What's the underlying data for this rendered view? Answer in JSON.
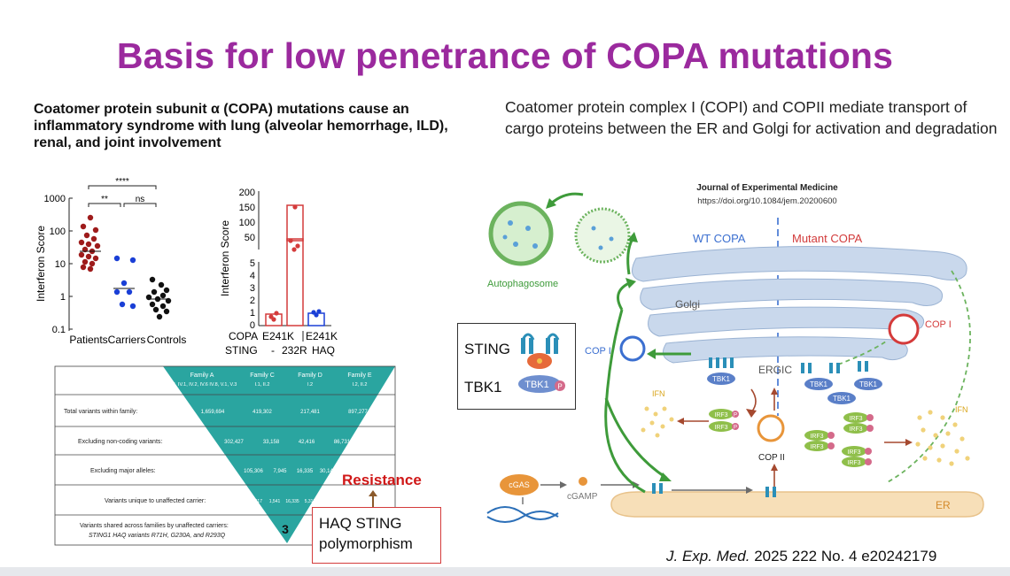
{
  "slide": {
    "title": "Basis for low penetrance of COPA mutations",
    "left_heading": "Coatomer protein subunit α (COPA) mutations cause an inflammatory syndrome with lung (alveolar hemorrhage, ILD), renal, and joint involvement",
    "right_heading": "Coatomer protein complex I (COPI) and COPII mediate transport of cargo proteins between the ER and Golgi for activation and degradation",
    "citation_journal": "J. Exp. Med.",
    "citation_rest": " 2025 222 No. 4 e20242179"
  },
  "scatter_plot": {
    "ylabel": "Interferon Score",
    "yticks": [
      "1000",
      "100",
      "10",
      "1",
      "0.1"
    ],
    "groups": [
      "Patients",
      "Carriers",
      "Controls"
    ],
    "sig1": "****",
    "sig2": "**",
    "sig3": "ns"
  },
  "bar_plot": {
    "ylabel": "Interferon Score",
    "yticks_top": [
      "200",
      "150",
      "100",
      "50",
      "5"
    ],
    "yticks_bottom": [
      "4",
      "3",
      "2",
      "1",
      "0"
    ],
    "copa_label": "COPA",
    "sting_label": "STING",
    "copa_1": "E241K",
    "copa_2": "E241K",
    "sting_1": "-",
    "sting_2": "232R",
    "sting_3": "HAQ"
  },
  "funnel": {
    "families": [
      {
        "name": "Family A",
        "members": "III.2, IV.1, IV.2, IV.6 IV.8, V.1, V.3"
      },
      {
        "name": "Family C",
        "members": "I.1, II.2"
      },
      {
        "name": "Family D",
        "members": "I.2"
      },
      {
        "name": "Family E",
        "members": "I.2, II.2"
      }
    ],
    "rows": [
      {
        "label": "Total variants within family:",
        "values": [
          "1,659,694",
          "419,302",
          "217,481",
          "897,277"
        ]
      },
      {
        "label": "Excluding non-coding variants:",
        "values": [
          "302,427",
          "33,158",
          "42,416",
          "86,731"
        ]
      },
      {
        "label": "Excluding major alleles:",
        "values": [
          "105,306",
          "7,945",
          "16,335",
          "30,145"
        ]
      },
      {
        "label": "Variants unique to unaffected carrier:",
        "values": [
          "117",
          "1,541",
          "16,335",
          "5,317"
        ]
      }
    ],
    "last_row_line1": "Variants shared across families by unaffected carriers:",
    "last_row_line2": "STING1 HAQ variants R71H, G230A, and R293Q",
    "last_value": "3",
    "resistance": "Resistance",
    "haq_box": "HAQ STING polymorphism"
  },
  "diagram": {
    "journal": "Journal of Experimental Medicine",
    "doi": "https://doi.org/10.1084/jem.20200600",
    "wt": "WT COPA",
    "mutant": "Mutant COPA",
    "golgi": "Golgi",
    "ergic": "ERGIC",
    "copi_left": "COP I",
    "copi_right": "COP I",
    "copii": "COP II",
    "autophagosome": "Autophagosome",
    "ifn_left": "IFN",
    "ifn_right": "IFN",
    "er": "ER",
    "cgas": "cGAS",
    "cgamp": "cGAMP",
    "tbk1": "TBK1",
    "irf3": "IRF3",
    "p": "P",
    "sting_legend": "STING",
    "tbk1_legend": "TBK1"
  },
  "colors": {
    "title": "#9b2a9e",
    "funnel": "#2aa5a0",
    "green_arrow": "#3e9b3a",
    "red": "#d43b3b",
    "golgi": "#c9d8ec",
    "wt_label": "#3b6fd0",
    "mutant_label": "#d23b3b"
  }
}
